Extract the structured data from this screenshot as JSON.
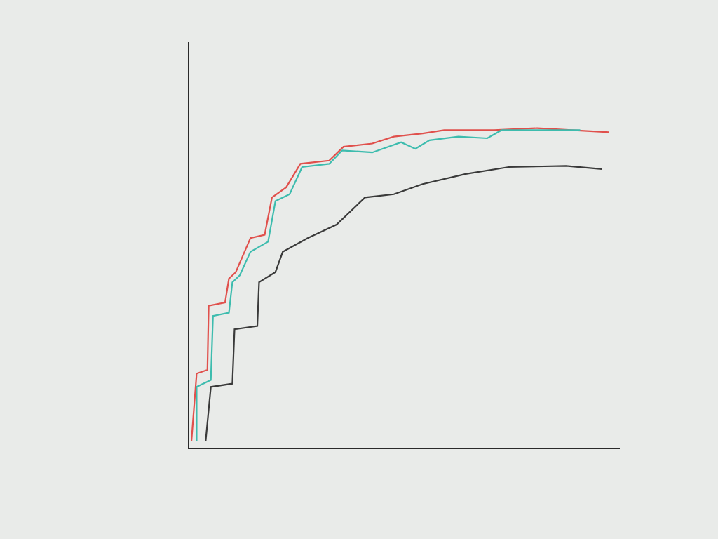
{
  "chart_data": {
    "type": "line",
    "xlim": [
      0,
      100
    ],
    "ylim": [
      0,
      100
    ],
    "xticks": [],
    "yticks": [],
    "tick_labels": false,
    "grid": false,
    "series": [
      {
        "color": "#e0504c",
        "x": [
          0.5,
          1.7,
          4.2,
          4.5,
          8.3,
          9.2,
          10.8,
          14.2,
          17.5,
          19.2,
          22.5,
          25.8,
          32.5,
          35.8,
          42.5,
          47.5,
          54.2,
          59.2,
          70.8,
          80.8,
          97.5
        ],
        "values": [
          1.7,
          18.3,
          19.2,
          35,
          35.8,
          41.7,
          43.3,
          51.7,
          52.5,
          61.7,
          64.2,
          70,
          70.8,
          74.2,
          75,
          76.7,
          77.5,
          78.3,
          78.3,
          78.8,
          77.8
        ]
      },
      {
        "color": "#3dbcae",
        "x": [
          1.7,
          1.7,
          5,
          5.5,
          9.2,
          10,
          11.7,
          14.2,
          18.3,
          20,
          23.3,
          26.2,
          32.5,
          35.5,
          42.5,
          49.2,
          52.5,
          55.8,
          62.5,
          69.2,
          72.5,
          80.8,
          90.8
        ],
        "values": [
          1.7,
          15,
          16.7,
          32.5,
          33.3,
          40.8,
          42.5,
          48.3,
          50.8,
          60.8,
          62.5,
          69.2,
          70,
          73.3,
          72.8,
          75.3,
          73.7,
          75.8,
          76.7,
          76.3,
          78.3,
          78.3,
          78.3
        ]
      },
      {
        "color": "#3a3a3a",
        "x": [
          3.8,
          5,
          10,
          10.5,
          15.8,
          16.2,
          20,
          21.7,
          27.5,
          34.2,
          40.8,
          47.5,
          54.2,
          64.2,
          74.2,
          87.5,
          95.8
        ],
        "values": [
          1.7,
          15,
          15.8,
          29.2,
          30,
          40.8,
          43.3,
          48.3,
          51.7,
          55,
          61.7,
          62.5,
          65,
          67.5,
          69.2,
          69.5,
          68.7
        ]
      }
    ]
  }
}
